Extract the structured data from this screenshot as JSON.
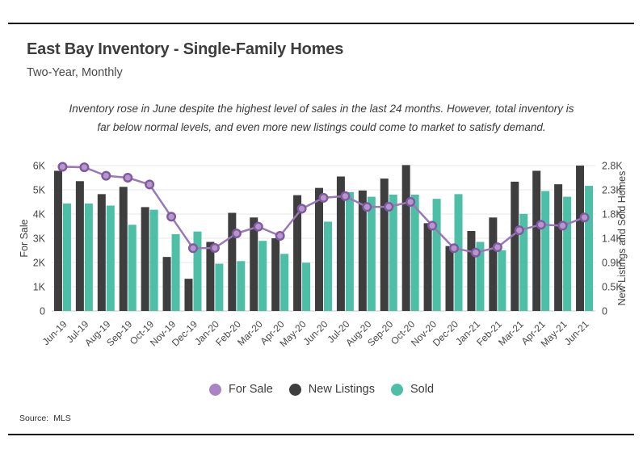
{
  "header": {
    "title": "East Bay Inventory - Single-Family Homes",
    "subtitle": "Two-Year, Monthly",
    "annotation_line1": "Inventory rose in June despite the highest level of sales in the last 24 months. However, total inventory is",
    "annotation_line2": "far below normal levels, and even more new listings could come to market to satisfy demand."
  },
  "legend": [
    {
      "label": "For Sale",
      "color": "#a986c3"
    },
    {
      "label": "New Listings",
      "color": "#3e3e3e"
    },
    {
      "label": "Sold",
      "color": "#4dbfa6"
    }
  ],
  "footer": {
    "source_label": "Source:",
    "source_value": "MLS"
  },
  "chart_data": {
    "type": "bar",
    "subtype": "grouped bars with overlaid line, dual y-axes",
    "categories": [
      "Jun-19",
      "Jul-19",
      "Aug-19",
      "Sep-19",
      "Oct-19",
      "Nov-19",
      "Dec-19",
      "Jan-20",
      "Feb-20",
      "Mar-20",
      "Apr-20",
      "May-20",
      "Jun-20",
      "Jul-20",
      "Aug-20",
      "Sep-20",
      "Oct-20",
      "Nov-20",
      "Dec-20",
      "Jan-21",
      "Feb-21",
      "Mar-21",
      "Apr-21",
      "May-21",
      "Jun-21"
    ],
    "series": [
      {
        "name": "For Sale",
        "type": "line",
        "axis": "left",
        "color": "#9a78b7",
        "marker_fill": "#b995cd",
        "marker_stroke": "#7e5ba0",
        "values": [
          5950,
          5930,
          5580,
          5500,
          5220,
          3890,
          2590,
          2600,
          3200,
          3480,
          3100,
          4220,
          4670,
          4740,
          4290,
          4300,
          4500,
          3520,
          2590,
          2410,
          2630,
          3330,
          3560,
          3520,
          3860
        ]
      },
      {
        "name": "New Listings",
        "type": "bar",
        "axis": "right",
        "color": "#3e3e3e",
        "values": [
          2700,
          2500,
          2250,
          2390,
          2000,
          1040,
          620,
          1330,
          1890,
          1800,
          1400,
          2230,
          2370,
          2590,
          2320,
          2550,
          2810,
          1690,
          1250,
          1540,
          1800,
          2490,
          2700,
          2440,
          2800
        ]
      },
      {
        "name": "Sold",
        "type": "bar",
        "axis": "right",
        "color": "#4dbfa6",
        "values": [
          2070,
          2070,
          2030,
          1660,
          1950,
          1480,
          1530,
          910,
          960,
          1350,
          1100,
          930,
          1720,
          2290,
          2200,
          2240,
          2240,
          2160,
          2250,
          1330,
          1170,
          1870,
          2310,
          2200,
          2410
        ]
      }
    ],
    "left_axis": {
      "title": "For Sale",
      "max": 6000
    },
    "right_axis": {
      "title": "New Listings and Sold Homes",
      "max": 2800
    },
    "y_gridlines": [
      {
        "left_value": 0,
        "left_label": "0",
        "right_label": "0"
      },
      {
        "left_value": 1000,
        "left_label": "1K",
        "right_label": "0.5K"
      },
      {
        "left_value": 2000,
        "left_label": "2K",
        "right_label": "0.9K"
      },
      {
        "left_value": 3000,
        "left_label": "3K",
        "right_label": "1.4K"
      },
      {
        "left_value": 4000,
        "left_label": "4K",
        "right_label": "1.8K"
      },
      {
        "left_value": 5000,
        "left_label": "5K",
        "right_label": "2.3K"
      },
      {
        "left_value": 6000,
        "left_label": "6K",
        "right_label": "2.8K"
      }
    ],
    "legend_position": "bottom center",
    "grid": "horizontal only"
  }
}
